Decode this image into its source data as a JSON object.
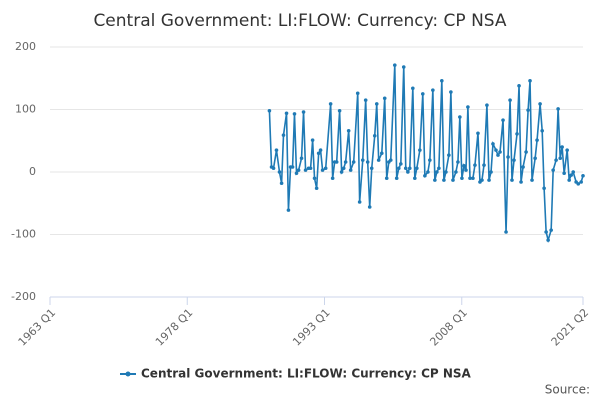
{
  "chart_data": {
    "type": "line",
    "title": "Central Government: LI:FLOW: Currency: CP NSA",
    "source": "Source:",
    "xlim": [
      1963,
      2021.25
    ],
    "xticks": [
      {
        "value": 1963,
        "label": "1963 Q1"
      },
      {
        "value": 1978,
        "label": "1978 Q1"
      },
      {
        "value": 1993,
        "label": "1993 Q1"
      },
      {
        "value": 2008,
        "label": "2008 Q1"
      },
      {
        "value": 2021.25,
        "label": "2021 Q2"
      }
    ],
    "ylim": [
      -200,
      200
    ],
    "yticks": [
      -200,
      -100,
      0,
      100,
      200
    ],
    "grid": true,
    "legend": "bottom",
    "x": [
      1986.98,
      1987.21,
      1987.43,
      1987.75,
      1988.08,
      1988.31,
      1988.52,
      1988.85,
      1989.06,
      1989.29,
      1989.51,
      1989.72,
      1989.94,
      1990.17,
      1990.49,
      1990.71,
      1990.93,
      1991.26,
      1991.48,
      1991.7,
      1991.91,
      1992.14,
      1992.36,
      1992.57,
      1992.79,
      1993.13,
      1993.67,
      1993.89,
      1994.11,
      1994.33,
      1994.65,
      1994.87,
      1995.1,
      1995.31,
      1995.64,
      1995.86,
      1996.19,
      1996.63,
      1996.84,
      1997.18,
      1997.5,
      1997.72,
      1997.94,
      1998.16,
      1998.49,
      1998.71,
      1998.92,
      1999.26,
      1999.58,
      1999.8,
      2000.03,
      2000.24,
      2000.68,
      2000.89,
      2001.12,
      2001.34,
      2001.66,
      2001.88,
      2002.11,
      2002.32,
      2002.65,
      2002.87,
      2003.09,
      2003.42,
      2003.74,
      2003.97,
      2004.3,
      2004.51,
      2004.84,
      2005.06,
      2005.28,
      2005.5,
      2005.82,
      2006.05,
      2006.27,
      2006.59,
      2006.81,
      2007.04,
      2007.36,
      2007.58,
      2007.79,
      2008.02,
      2008.24,
      2008.46,
      2008.67,
      2008.9,
      2009.22,
      2009.44,
      2009.77,
      2009.99,
      2010.21,
      2010.43,
      2010.75,
      2010.98,
      2011.2,
      2011.41,
      2011.74,
      2011.96,
      2012.18,
      2012.51,
      2012.84,
      2013.06,
      2013.28,
      2013.49,
      2013.71,
      2014.04,
      2014.26,
      2014.48,
      2014.7,
      2015.03,
      2015.25,
      2015.46,
      2015.68,
      2016.02,
      2016.23,
      2016.56,
      2016.79,
      2017.0,
      2017.22,
      2017.44,
      2017.77,
      2017.99,
      2018.31,
      2018.53,
      2018.76,
      2018.97,
      2019.19,
      2019.52,
      2019.74,
      2019.96,
      2020.18,
      2020.5,
      2020.73,
      2021.05,
      2021.25
    ],
    "series": [
      {
        "name": "Central Government: LI:FLOW: Currency: CP NSA",
        "color": "#1f7ab5",
        "values": [
          98,
          8,
          6,
          35,
          0,
          -18,
          59,
          94,
          -61,
          8,
          8,
          93,
          -2,
          3,
          22,
          96,
          3,
          6,
          6,
          51,
          -10,
          -26,
          30,
          35,
          3,
          6,
          109,
          -10,
          16,
          16,
          98,
          0,
          6,
          16,
          66,
          3,
          16,
          126,
          -48,
          19,
          115,
          16,
          -56,
          6,
          58,
          109,
          19,
          30,
          118,
          -10,
          16,
          19,
          171,
          -10,
          6,
          13,
          168,
          6,
          0,
          6,
          134,
          -10,
          6,
          35,
          125,
          -6,
          0,
          19,
          131,
          -13,
          0,
          6,
          146,
          -13,
          0,
          27,
          128,
          -13,
          0,
          16,
          88,
          -10,
          10,
          3,
          104,
          -10,
          -10,
          11,
          62,
          -16,
          -13,
          11,
          107,
          -13,
          0,
          45,
          35,
          27,
          32,
          83,
          -96,
          24,
          115,
          -13,
          19,
          61,
          138,
          -16,
          8,
          32,
          99,
          146,
          -13,
          22,
          51,
          109,
          66,
          -26,
          -96,
          -109,
          -93,
          3,
          19,
          101,
          22,
          40,
          -2,
          35,
          -13,
          -5,
          0,
          -16,
          -19,
          -16,
          -6
        ]
      }
    ]
  }
}
